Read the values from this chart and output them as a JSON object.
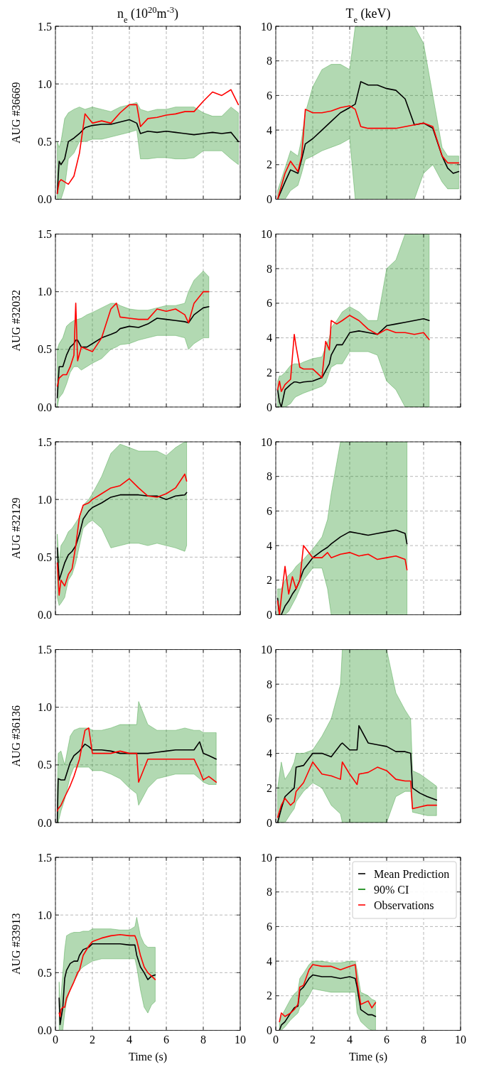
{
  "chart_data": [
    {
      "type": "line",
      "title": "n$_{e}$ (10$^{20}$m$^{-3}$)",
      "ylabel": "AUG #36669",
      "xlim": [
        0,
        10
      ],
      "xticks": [
        0,
        2,
        4,
        6,
        8,
        10
      ],
      "ylim": [
        0,
        1.5
      ],
      "yticks": [
        {
          "value": 0,
          "label": "0.0"
        },
        {
          "value": 0.5,
          "label": "0.5"
        },
        {
          "value": 1,
          "label": "1.0"
        },
        {
          "value": 1.5,
          "label": "1.5"
        }
      ],
      "grid": true,
      "tick_labels": "y",
      "legend": false,
      "x": [
        0.1,
        0.2,
        0.3,
        0.5,
        0.7,
        1,
        1.3,
        1.6,
        2,
        2.5,
        3,
        3.5,
        4,
        4.4,
        4.6,
        5,
        5.5,
        6,
        6.5,
        7,
        7.5,
        8,
        8.5,
        9,
        9.5,
        9.9
      ],
      "series": [
        {
          "color": "#000000",
          "values": [
            0.05,
            0.33,
            0.3,
            0.35,
            0.5,
            0.53,
            0.57,
            0.62,
            0.64,
            0.65,
            0.65,
            0.67,
            0.69,
            0.66,
            0.57,
            0.59,
            0.58,
            0.59,
            0.58,
            0.57,
            0.56,
            0.57,
            0.58,
            0.57,
            0.58,
            0.5
          ]
        },
        {
          "color": "#008000",
          "values": [
            null,
            null,
            null,
            null,
            null,
            null,
            null,
            null,
            null,
            null,
            null,
            null,
            null,
            null,
            null,
            null,
            null,
            null,
            null,
            null,
            null,
            null,
            null,
            null,
            null,
            null
          ],
          "upper": [
            0.5,
            0.45,
            0.5,
            0.7,
            0.75,
            0.78,
            0.8,
            0.78,
            0.8,
            0.78,
            0.76,
            0.8,
            0.82,
            0.84,
            0.78,
            0.76,
            0.78,
            0.78,
            0.8,
            0.8,
            0.8,
            0.75,
            0.72,
            0.72,
            0.8,
            0.75
          ],
          "lower": [
            0,
            0,
            0,
            0.1,
            0.35,
            0.4,
            0.5,
            0.5,
            0.52,
            0.52,
            0.54,
            0.56,
            0.58,
            0.6,
            0.35,
            0.35,
            0.36,
            0.36,
            0.35,
            0.35,
            0.36,
            0.42,
            0.42,
            0.42,
            0.35,
            0.3
          ]
        },
        {
          "color": "#ff0000",
          "values": [
            0.05,
            0.15,
            0.17,
            0.15,
            0.13,
            0.2,
            0.4,
            0.74,
            0.66,
            0.68,
            0.66,
            0.75,
            0.82,
            0.82,
            0.63,
            0.7,
            0.71,
            0.73,
            0.74,
            0.76,
            0.76,
            0.85,
            0.93,
            0.9,
            0.95,
            0.82
          ]
        }
      ]
    },
    {
      "type": "line",
      "title": "T$_{e}$ (keV)",
      "xlim": [
        0,
        10
      ],
      "xticks": [
        0,
        2,
        4,
        6,
        8,
        10
      ],
      "ylim": [
        0,
        10
      ],
      "yticks": [
        0,
        2,
        4,
        6,
        8,
        10
      ],
      "grid": true,
      "tick_labels": "y",
      "legend": false,
      "x": [
        0.1,
        0.5,
        0.8,
        1.2,
        1.4,
        1.6,
        2,
        2.5,
        3,
        3.5,
        4,
        4.3,
        4.6,
        5,
        5.5,
        6,
        6.5,
        7,
        7.5,
        8,
        8.5,
        9,
        9.3,
        9.6,
        9.9
      ],
      "series": [
        {
          "color": "#000000",
          "values": [
            0,
            1,
            1.7,
            1.5,
            2.3,
            3.2,
            3.5,
            4,
            4.5,
            5,
            5.3,
            5.5,
            6.8,
            6.6,
            6.6,
            6.4,
            6.3,
            5.8,
            4.3,
            4.4,
            4.1,
            2.5,
            1.8,
            1.5,
            1.6
          ]
        },
        {
          "color": "#008000",
          "values": [
            null,
            null,
            null,
            null,
            null,
            null,
            null,
            null,
            null,
            null,
            null,
            null,
            null,
            null,
            null,
            null,
            null,
            null,
            null,
            null,
            null,
            null,
            null,
            null,
            null
          ],
          "upper": [
            0.5,
            1.8,
            2.8,
            2.5,
            3.5,
            5,
            6.5,
            7.5,
            7.8,
            7.8,
            7.5,
            10,
            10,
            10,
            10,
            10,
            10,
            10,
            10,
            9,
            6,
            3,
            2.5,
            2.5,
            2.5
          ],
          "lower": [
            0,
            0,
            0.5,
            0.8,
            1.5,
            2.3,
            2.5,
            2.8,
            3,
            3.2,
            3.5,
            0,
            0,
            0,
            0,
            0,
            0,
            0,
            0,
            1.5,
            2,
            1,
            0.6,
            0.6,
            0.6
          ]
        },
        {
          "color": "#ff0000",
          "values": [
            0,
            1.5,
            2.2,
            1.6,
            2.5,
            5.2,
            5,
            5,
            5.1,
            5.3,
            5.4,
            5.2,
            4.2,
            4.1,
            4.1,
            4.1,
            4.1,
            4.2,
            4.3,
            4.4,
            4.2,
            2.5,
            2.1,
            2.1,
            2.1
          ]
        }
      ]
    },
    {
      "type": "line",
      "ylabel": "AUG #32032",
      "xlim": [
        0,
        10
      ],
      "xticks": [
        0,
        2,
        4,
        6,
        8,
        10
      ],
      "ylim": [
        0,
        1.5
      ],
      "yticks": [
        {
          "value": 0,
          "label": "0.0"
        },
        {
          "value": 0.5,
          "label": "0.5"
        },
        {
          "value": 1,
          "label": "1.0"
        },
        {
          "value": 1.5,
          "label": "1.5"
        }
      ],
      "grid": true,
      "tick_labels": "y",
      "legend": false,
      "x": [
        0.1,
        0.2,
        0.4,
        0.6,
        0.8,
        1,
        1.1,
        1.2,
        1.4,
        1.7,
        2,
        2.5,
        3,
        3.3,
        3.5,
        4,
        4.5,
        5,
        5.5,
        6,
        6.5,
        7,
        7.2,
        7.5,
        8,
        8.3
      ],
      "series": [
        {
          "color": "#000000",
          "values": [
            0.08,
            0.35,
            0.35,
            0.45,
            0.52,
            0.55,
            0.58,
            0.58,
            0.52,
            0.52,
            0.55,
            0.6,
            0.63,
            0.65,
            0.68,
            0.7,
            0.69,
            0.72,
            0.77,
            0.76,
            0.75,
            0.74,
            0.73,
            0.8,
            0.86,
            0.87
          ]
        },
        {
          "color": "#008000",
          "values": [
            null,
            null,
            null,
            null,
            null,
            null,
            null,
            null,
            null,
            null,
            null,
            null,
            null,
            null,
            null,
            null,
            null,
            null,
            null,
            null,
            null,
            null,
            null,
            null,
            null,
            null
          ],
          "upper": [
            0.5,
            0.55,
            0.6,
            0.7,
            0.73,
            0.75,
            0.76,
            0.76,
            0.77,
            0.8,
            0.82,
            0.86,
            0.9,
            0.9,
            0.88,
            0.85,
            0.84,
            0.84,
            0.86,
            0.88,
            0.88,
            0.9,
            1.0,
            1.1,
            1.18,
            1.13
          ],
          "lower": [
            0,
            0.08,
            0.12,
            0.2,
            0.3,
            0.35,
            0.35,
            0.35,
            0.32,
            0.35,
            0.38,
            0.42,
            0.5,
            0.52,
            0.54,
            0.55,
            0.58,
            0.6,
            0.62,
            0.62,
            0.62,
            0.6,
            0.5,
            0.55,
            0.6,
            0.6
          ]
        },
        {
          "color": "#ff0000",
          "values": [
            0.18,
            0.25,
            0.28,
            0.28,
            0.35,
            0.45,
            0.9,
            0.4,
            0.52,
            0.5,
            0.48,
            0.6,
            0.85,
            0.9,
            0.78,
            0.77,
            0.76,
            0.76,
            0.85,
            0.83,
            0.85,
            0.8,
            0.73,
            0.9,
            1.0,
            1.0
          ]
        }
      ]
    },
    {
      "type": "line",
      "xlim": [
        0,
        10
      ],
      "xticks": [
        0,
        2,
        4,
        6,
        8,
        10
      ],
      "ylim": [
        0,
        10
      ],
      "yticks": [
        0,
        2,
        4,
        6,
        8,
        10
      ],
      "grid": true,
      "tick_labels": "y",
      "legend": false,
      "x": [
        0.1,
        0.2,
        0.3,
        0.5,
        0.8,
        1,
        1.1,
        1.3,
        1.5,
        2,
        2.5,
        2.7,
        2.9,
        3,
        3.3,
        3.6,
        4,
        4.5,
        5,
        5.5,
        6,
        6.5,
        7,
        7.5,
        8,
        8.3
      ],
      "series": [
        {
          "color": "#000000",
          "values": [
            1,
            0.3,
            0,
            1,
            1.3,
            1.45,
            1.45,
            1.4,
            1.45,
            1.5,
            1.7,
            2.1,
            2.5,
            3,
            3.6,
            3.6,
            4.3,
            4.4,
            4.3,
            4.2,
            4.7,
            4.8,
            4.9,
            5,
            5.1,
            5
          ]
        },
        {
          "color": "#008000",
          "values": [
            null,
            null,
            null,
            null,
            null,
            null,
            null,
            null,
            null,
            null,
            null,
            null,
            null,
            null,
            null,
            null,
            null,
            null,
            null,
            null,
            null,
            null,
            null,
            null,
            null,
            null
          ],
          "upper": [
            1.5,
            1.8,
            1.8,
            2,
            2.4,
            2.5,
            2.5,
            2.5,
            2.6,
            2.8,
            2.9,
            3.5,
            4,
            4.6,
            5,
            5.5,
            5.8,
            5.5,
            5,
            5,
            8,
            8.5,
            10,
            10,
            10,
            10
          ],
          "lower": [
            0,
            0,
            0,
            0,
            0.2,
            0.5,
            0.6,
            0.7,
            0.8,
            1,
            1.2,
            1.4,
            2,
            2.3,
            2.5,
            2.5,
            3.2,
            3.2,
            3.2,
            3,
            1.5,
            1,
            0,
            0,
            0,
            0
          ]
        },
        {
          "color": "#ff0000",
          "values": [
            1,
            1.5,
            0.9,
            1.3,
            1.6,
            4.2,
            3.5,
            2.3,
            2.2,
            2.2,
            1.7,
            3.8,
            3.3,
            5,
            4.8,
            5,
            5.3,
            5,
            4.5,
            4.2,
            4.5,
            4.3,
            4.3,
            4.2,
            4.3,
            3.9
          ]
        }
      ]
    },
    {
      "type": "line",
      "ylabel": "AUG #32129",
      "xlim": [
        0,
        10
      ],
      "xticks": [
        0,
        2,
        4,
        6,
        8,
        10
      ],
      "ylim": [
        0,
        1.5
      ],
      "yticks": [
        {
          "value": 0,
          "label": "0.0"
        },
        {
          "value": 0.5,
          "label": "0.5"
        },
        {
          "value": 1,
          "label": "1.0"
        },
        {
          "value": 1.5,
          "label": "1.5"
        }
      ],
      "grid": true,
      "tick_labels": "y",
      "legend": false,
      "x": [
        0.1,
        0.2,
        0.3,
        0.5,
        0.7,
        0.9,
        1.1,
        1.3,
        1.5,
        1.8,
        2,
        2.5,
        3,
        3.5,
        4,
        4.5,
        5,
        5.5,
        6,
        6.5,
        7,
        7.1
      ],
      "series": [
        {
          "color": "#000000",
          "values": [
            0.58,
            0.3,
            0.35,
            0.45,
            0.52,
            0.55,
            0.6,
            0.7,
            0.83,
            0.9,
            0.93,
            0.97,
            1.02,
            1.04,
            1.04,
            1.04,
            1.03,
            1.03,
            1.0,
            1.03,
            1.04,
            1.06
          ]
        },
        {
          "color": "#008000",
          "values": [
            null,
            null,
            null,
            null,
            null,
            null,
            null,
            null,
            null,
            null,
            null,
            null,
            null,
            null,
            null,
            null,
            null,
            null,
            null,
            null,
            null,
            null
          ],
          "upper": [
            0.7,
            0.45,
            0.6,
            0.65,
            0.72,
            0.75,
            0.8,
            0.85,
            0.95,
            1.0,
            1.05,
            1.2,
            1.4,
            1.48,
            1.45,
            1.42,
            1.42,
            1.42,
            1.38,
            1.45,
            1.5,
            1.5
          ],
          "lower": [
            0.15,
            0.08,
            0.1,
            0.15,
            0.3,
            0.35,
            0.45,
            0.6,
            0.75,
            0.8,
            0.82,
            0.75,
            0.58,
            0.6,
            0.62,
            0.62,
            0.6,
            0.62,
            0.6,
            0.58,
            0.55,
            0.6
          ]
        },
        {
          "color": "#ff0000",
          "values": [
            0.45,
            0.17,
            0.3,
            0.25,
            0.35,
            0.4,
            0.6,
            0.85,
            0.95,
            0.97,
            1.0,
            1.05,
            1.1,
            1.12,
            1.18,
            1.1,
            1.03,
            1.02,
            1.05,
            1.1,
            1.22,
            1.16
          ]
        }
      ]
    },
    {
      "type": "line",
      "xlim": [
        0,
        10
      ],
      "xticks": [
        0,
        2,
        4,
        6,
        8,
        10
      ],
      "ylim": [
        0,
        10
      ],
      "yticks": [
        0,
        2,
        4,
        6,
        8,
        10
      ],
      "grid": true,
      "tick_labels": "y",
      "legend": false,
      "x": [
        0.1,
        0.2,
        0.3,
        0.5,
        0.7,
        0.9,
        1.1,
        1.3,
        1.5,
        2,
        2.5,
        2.8,
        3,
        3.5,
        4,
        4.5,
        5,
        5.5,
        6,
        6.5,
        7,
        7.1
      ],
      "series": [
        {
          "color": "#000000",
          "values": [
            0.95,
            0,
            0,
            0.5,
            0.8,
            1.2,
            1.5,
            2,
            2.6,
            3.3,
            3.7,
            3.9,
            4.1,
            4.5,
            4.8,
            4.7,
            4.6,
            4.7,
            4.8,
            4.9,
            4.7,
            4.1
          ]
        },
        {
          "color": "#008000",
          "values": [
            null,
            null,
            null,
            null,
            null,
            null,
            null,
            null,
            null,
            null,
            null,
            null,
            null,
            null,
            null,
            null,
            null,
            null,
            null,
            null,
            null,
            null
          ],
          "upper": [
            1.5,
            1.5,
            1.5,
            2,
            2.3,
            2.5,
            2.8,
            3,
            3.2,
            3.8,
            4.5,
            5.5,
            7,
            10,
            10,
            10,
            10,
            10,
            10,
            10,
            10,
            10
          ],
          "lower": [
            0,
            0,
            0,
            0,
            0.2,
            0.6,
            1,
            1.5,
            2,
            2.7,
            2.7,
            1.5,
            0,
            0,
            0,
            0,
            0,
            0,
            0,
            0,
            0,
            0
          ]
        },
        {
          "color": "#ff0000",
          "values": [
            0.8,
            0,
            1,
            2.8,
            1.2,
            2.2,
            1.5,
            2,
            4,
            3.3,
            3.3,
            3.6,
            3.3,
            3.5,
            3.6,
            3.4,
            3.5,
            3.2,
            3.3,
            3.4,
            3.2,
            2.6
          ]
        }
      ]
    },
    {
      "type": "line",
      "ylabel": "AUG #36136",
      "xlim": [
        0,
        10
      ],
      "xticks": [
        0,
        2,
        4,
        6,
        8,
        10
      ],
      "ylim": [
        0,
        1.5
      ],
      "yticks": [
        {
          "value": 0,
          "label": "0.0"
        },
        {
          "value": 0.5,
          "label": "0.5"
        },
        {
          "value": 1,
          "label": "1.0"
        },
        {
          "value": 1.5,
          "label": "1.5"
        }
      ],
      "grid": true,
      "tick_labels": "y",
      "legend": false,
      "x": [
        0.1,
        0.15,
        0.3,
        0.5,
        0.8,
        1,
        1.3,
        1.6,
        1.8,
        2,
        2.5,
        3,
        3.5,
        4,
        4.4,
        4.5,
        5,
        5.5,
        6,
        6.5,
        7,
        7.5,
        7.8,
        8,
        8.3,
        8.7
      ],
      "series": [
        {
          "color": "#000000",
          "values": [
            0,
            0.38,
            0.37,
            0.37,
            0.52,
            0.58,
            0.62,
            0.68,
            0.66,
            0.63,
            0.63,
            0.62,
            0.6,
            0.6,
            0.6,
            0.6,
            0.6,
            0.61,
            0.62,
            0.63,
            0.63,
            0.63,
            0.7,
            0.6,
            0.58,
            0.55
          ]
        },
        {
          "color": "#008000",
          "values": [
            null,
            null,
            null,
            null,
            null,
            null,
            null,
            null,
            null,
            null,
            null,
            null,
            null,
            null,
            null,
            null,
            null,
            null,
            null,
            null,
            null,
            null,
            null,
            null,
            null,
            null
          ],
          "upper": [
            0.3,
            0.6,
            0.62,
            0.5,
            0.75,
            0.8,
            0.82,
            0.82,
            0.82,
            0.8,
            0.8,
            0.82,
            0.85,
            0.85,
            0.85,
            1.05,
            0.85,
            0.8,
            0.8,
            0.8,
            0.82,
            0.8,
            0.8,
            0.78,
            0.78,
            0.78
          ],
          "lower": [
            0,
            0,
            0.1,
            0.2,
            0.4,
            0.48,
            0.48,
            0.48,
            0.48,
            0.45,
            0.45,
            0.42,
            0.38,
            0.3,
            0.25,
            0.15,
            0.3,
            0.38,
            0.4,
            0.42,
            0.42,
            0.42,
            0.38,
            0.35,
            0.33,
            0.33
          ]
        },
        {
          "color": "#ff0000",
          "values": [
            0.1,
            0.12,
            0.15,
            0.22,
            0.32,
            0.4,
            0.55,
            0.8,
            0.82,
            0.6,
            0.6,
            0.6,
            0.62,
            0.6,
            0.6,
            0.35,
            0.55,
            0.55,
            0.55,
            0.55,
            0.55,
            0.55,
            0.45,
            0.37,
            0.4,
            0.35
          ]
        }
      ]
    },
    {
      "type": "line",
      "xlim": [
        0,
        10
      ],
      "xticks": [
        0,
        2,
        4,
        6,
        8,
        10
      ],
      "ylim": [
        0,
        10
      ],
      "yticks": [
        0,
        2,
        4,
        6,
        8,
        10
      ],
      "grid": true,
      "tick_labels": "y",
      "legend": false,
      "x": [
        0.1,
        0.3,
        0.5,
        0.8,
        1,
        1.1,
        1.5,
        2,
        2.5,
        3,
        3.5,
        3.6,
        4,
        4.4,
        4.5,
        5,
        5.5,
        6,
        6.5,
        7,
        7.3,
        7.4,
        7.8,
        8.2,
        8.7
      ],
      "series": [
        {
          "color": "#000000",
          "values": [
            0,
            0.8,
            1.5,
            1.8,
            2,
            3.2,
            3.3,
            4,
            4,
            3.8,
            4.5,
            4.6,
            4.2,
            4.2,
            5.6,
            4.6,
            4.5,
            4.4,
            4.1,
            4.1,
            4,
            2,
            1.7,
            1.5,
            1.3
          ]
        },
        {
          "color": "#008000",
          "values": [
            null,
            null,
            null,
            null,
            null,
            null,
            null,
            null,
            null,
            null,
            null,
            null,
            null,
            null,
            null,
            null,
            null,
            null,
            null,
            null,
            null,
            null,
            null,
            null,
            null
          ],
          "upper": [
            2,
            3.5,
            2.5,
            3,
            3.5,
            4,
            4,
            4.2,
            5,
            6,
            8,
            10,
            10,
            10,
            10,
            10,
            10,
            10,
            7.5,
            6.5,
            6,
            3,
            2.8,
            2.5,
            2.1
          ],
          "lower": [
            0,
            0,
            0,
            0.5,
            0.8,
            1.2,
            1.8,
            2.3,
            2,
            1,
            0.5,
            0,
            0,
            0,
            0,
            0,
            0,
            0,
            1.5,
            1.8,
            1.8,
            0.6,
            0.5,
            0.4,
            0.4
          ]
        },
        {
          "color": "#ff0000",
          "values": [
            0.3,
            1,
            1.4,
            1,
            1.2,
            1.8,
            2.3,
            3.5,
            2.8,
            2.7,
            2.5,
            3.5,
            2.8,
            2.2,
            2.8,
            2.9,
            3.2,
            3,
            2.5,
            2.4,
            2.4,
            0.8,
            0.9,
            1,
            1
          ]
        }
      ]
    },
    {
      "type": "line",
      "ylabel": "AUG #33913",
      "xlabel": "Time (s)",
      "xlim": [
        0,
        10
      ],
      "xticks": [
        0,
        2,
        4,
        6,
        8,
        10
      ],
      "ylim": [
        0,
        1.5
      ],
      "yticks": [
        {
          "value": 0,
          "label": "0.0"
        },
        {
          "value": 0.5,
          "label": "0.5"
        },
        {
          "value": 1,
          "label": "1.0"
        },
        {
          "value": 1.5,
          "label": "1.5"
        }
      ],
      "grid": true,
      "legend": false,
      "x": [
        0.2,
        0.25,
        0.3,
        0.4,
        0.5,
        0.6,
        0.8,
        1,
        1.2,
        1.3,
        1.5,
        1.8,
        2,
        2.5,
        3,
        3.5,
        4,
        4.3,
        4.4,
        4.6,
        4.8,
        5,
        5.2,
        5.4
      ],
      "series": [
        {
          "color": "#000000",
          "values": [
            0.28,
            0.05,
            0.1,
            0.2,
            0.45,
            0.52,
            0.58,
            0.6,
            0.6,
            0.65,
            0.7,
            0.72,
            0.75,
            0.75,
            0.75,
            0.75,
            0.74,
            0.74,
            0.65,
            0.55,
            0.5,
            0.44,
            0.47,
            0.48
          ]
        },
        {
          "color": "#008000",
          "values": [
            null,
            null,
            null,
            null,
            null,
            null,
            null,
            null,
            null,
            null,
            null,
            null,
            null,
            null,
            null,
            null,
            null,
            null,
            null,
            null,
            null,
            null,
            null,
            null
          ],
          "upper": [
            0.42,
            0.2,
            0.3,
            0.5,
            0.7,
            0.82,
            0.84,
            0.85,
            0.85,
            0.85,
            0.86,
            0.86,
            0.88,
            0.88,
            0.88,
            0.87,
            0.87,
            0.9,
            0.98,
            0.82,
            0.75,
            0.72,
            0.72,
            0.72
          ],
          "lower": [
            0,
            0,
            0,
            0,
            0.15,
            0.25,
            0.35,
            0.42,
            0.48,
            0.52,
            0.55,
            0.58,
            0.6,
            0.62,
            0.62,
            0.62,
            0.62,
            0.62,
            0.55,
            0.35,
            0.2,
            0.15,
            0.22,
            0.25
          ]
        },
        {
          "color": "#ff0000",
          "values": [
            0.15,
            0.12,
            0.18,
            0.2,
            0.2,
            0.28,
            0.35,
            0.42,
            0.5,
            0.52,
            0.65,
            0.73,
            0.77,
            0.8,
            0.82,
            0.83,
            0.82,
            0.82,
            0.78,
            0.65,
            0.55,
            0.5,
            0.47,
            0.44
          ]
        }
      ]
    },
    {
      "type": "line",
      "xlabel": "Time (s)",
      "xlim": [
        0,
        10
      ],
      "xticks": [
        0,
        2,
        4,
        6,
        8,
        10
      ],
      "ylim": [
        0,
        10
      ],
      "yticks": [
        0,
        2,
        4,
        6,
        8,
        10
      ],
      "grid": true,
      "legend": "top right",
      "x": [
        0.2,
        0.3,
        0.5,
        0.8,
        1,
        1.2,
        1.3,
        1.5,
        1.8,
        2,
        2.5,
        3,
        3.5,
        4,
        4.3,
        4.4,
        4.6,
        5,
        5.2,
        5.4
      ],
      "series": [
        {
          "name": "Mean Prediction",
          "color": "#000000",
          "values": [
            0,
            0.3,
            0.5,
            1,
            1.3,
            1.4,
            2.3,
            2.5,
            3,
            3.2,
            3.1,
            3.1,
            3.0,
            3.1,
            3.0,
            2.5,
            1.2,
            0.9,
            0.9,
            0.8
          ]
        },
        {
          "name": "90% CI",
          "color": "#008000",
          "values": [
            null,
            null,
            null,
            null,
            null,
            null,
            null,
            null,
            null,
            null,
            null,
            null,
            null,
            null,
            null,
            null,
            null,
            null,
            null,
            null
          ],
          "upper": [
            0.5,
            0.8,
            1.2,
            1.8,
            2.1,
            2.3,
            3,
            3.3,
            3.8,
            4,
            4,
            3.9,
            3.9,
            4,
            4,
            3.5,
            2.2,
            2,
            1.8,
            1.7
          ],
          "lower": [
            0,
            0,
            0.2,
            0.6,
            0.8,
            1,
            1.3,
            1.5,
            2,
            2.4,
            2.3,
            2.2,
            2.2,
            2.2,
            2.2,
            1,
            0.5,
            0.1,
            0,
            0
          ]
        },
        {
          "name": "Observations",
          "color": "#ff0000",
          "values": [
            0.5,
            1,
            0.8,
            1,
            1.2,
            1.5,
            2.5,
            2.6,
            3.5,
            3.8,
            3.7,
            3.7,
            3.5,
            3.7,
            3.8,
            2.8,
            1.5,
            1.7,
            1.3,
            1.6
          ]
        }
      ]
    }
  ]
}
